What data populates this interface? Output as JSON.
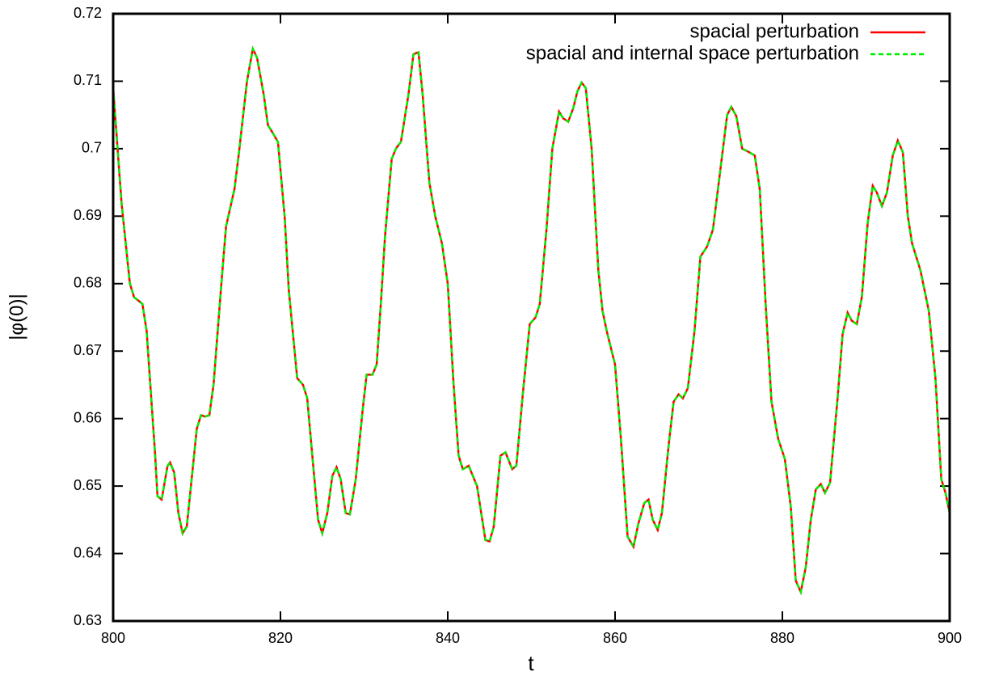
{
  "chart_data": {
    "type": "line",
    "xlabel": "t",
    "ylabel": "|φ(0)|",
    "xlim": [
      800,
      900
    ],
    "ylim": [
      0.63,
      0.72
    ],
    "xticks": [
      800,
      820,
      840,
      860,
      880,
      900
    ],
    "yticks": [
      0.63,
      0.64,
      0.65,
      0.66,
      0.67,
      0.68,
      0.69,
      0.7,
      0.71,
      0.72
    ],
    "legend": "top-right",
    "x": [
      800,
      801,
      802,
      802.5,
      803.5,
      804,
      805,
      805.3,
      805.8,
      806.5,
      806.8,
      807.3,
      807.8,
      808.3,
      808.8,
      809.3,
      810,
      810.5,
      811,
      811.5,
      812,
      813,
      813.5,
      814.5,
      815,
      816,
      816.7,
      817.2,
      818,
      818.5,
      819,
      819.7,
      820.5,
      821,
      822,
      822.7,
      823.2,
      823.7,
      824.5,
      825,
      825.6,
      826.2,
      826.7,
      827.2,
      827.8,
      828.3,
      829,
      829.8,
      830.3,
      831,
      831.5,
      832,
      832.5,
      833.3,
      833.8,
      834.4,
      835.3,
      835.9,
      836.5,
      837,
      837.8,
      838.5,
      839.3,
      840,
      840.7,
      841.3,
      841.8,
      842.5,
      843.5,
      844.5,
      845,
      845.5,
      846.3,
      846.9,
      847.7,
      848.2,
      849,
      849.8,
      850.5,
      851,
      851.8,
      852.5,
      853.3,
      853.8,
      854.4,
      855,
      855.5,
      856,
      856.5,
      857.2,
      858,
      858.5,
      859,
      860,
      860.7,
      861.5,
      862.2,
      862.8,
      863.5,
      864,
      864.5,
      865.1,
      865.6,
      866.4,
      867,
      867.6,
      868.1,
      868.7,
      869.5,
      870.2,
      871,
      871.7,
      872.5,
      873.4,
      873.9,
      874.5,
      875.2,
      876,
      876.7,
      877.3,
      878,
      878.7,
      879.5,
      880.3,
      881,
      881.6,
      882.2,
      882.8,
      883.4,
      884,
      884.6,
      885.1,
      885.7,
      886.6,
      887.2,
      887.8,
      888.3,
      888.9,
      889.5,
      890.2,
      890.8,
      891.3,
      891.9,
      892.5,
      893.2,
      893.8,
      894.4,
      895,
      895.5,
      896.5,
      897.5,
      898.3,
      899,
      899.5,
      900
    ],
    "series": [
      {
        "name": "spacial perturbation",
        "color": "#ff0000",
        "dash": false,
        "values": [
          0.709,
          0.692,
          0.68,
          0.678,
          0.677,
          0.673,
          0.655,
          0.6485,
          0.648,
          0.653,
          0.6535,
          0.652,
          0.646,
          0.643,
          0.644,
          0.65,
          0.6585,
          0.6605,
          0.6603,
          0.6605,
          0.665,
          0.681,
          0.6885,
          0.694,
          0.699,
          0.71,
          0.7148,
          0.7135,
          0.708,
          0.7035,
          0.7025,
          0.701,
          0.69,
          0.679,
          0.666,
          0.665,
          0.663,
          0.656,
          0.645,
          0.643,
          0.646,
          0.6515,
          0.6528,
          0.651,
          0.646,
          0.6458,
          0.651,
          0.661,
          0.6665,
          0.6665,
          0.668,
          0.677,
          0.687,
          0.6985,
          0.7,
          0.701,
          0.708,
          0.714,
          0.7143,
          0.708,
          0.695,
          0.69,
          0.686,
          0.68,
          0.665,
          0.6545,
          0.6525,
          0.653,
          0.65,
          0.642,
          0.6418,
          0.644,
          0.6545,
          0.655,
          0.6525,
          0.653,
          0.664,
          0.674,
          0.675,
          0.677,
          0.688,
          0.7,
          0.7055,
          0.7045,
          0.704,
          0.706,
          0.7085,
          0.7098,
          0.709,
          0.7,
          0.682,
          0.676,
          0.673,
          0.668,
          0.657,
          0.6425,
          0.641,
          0.6445,
          0.6475,
          0.648,
          0.645,
          0.6435,
          0.646,
          0.656,
          0.6625,
          0.6636,
          0.663,
          0.6645,
          0.673,
          0.684,
          0.6855,
          0.688,
          0.696,
          0.705,
          0.7062,
          0.7048,
          0.7,
          0.6995,
          0.699,
          0.694,
          0.677,
          0.6625,
          0.657,
          0.654,
          0.647,
          0.636,
          0.6343,
          0.638,
          0.645,
          0.6495,
          0.6503,
          0.649,
          0.6505,
          0.663,
          0.6725,
          0.6757,
          0.6745,
          0.674,
          0.678,
          0.689,
          0.6945,
          0.6935,
          0.6915,
          0.6935,
          0.699,
          0.7012,
          0.6995,
          0.69,
          0.686,
          0.682,
          0.676,
          0.666,
          0.651,
          0.649,
          0.646
        ]
      },
      {
        "name": "spacial and internal space perturbation",
        "color": "#00ee00",
        "dash": true,
        "values": [
          0.709,
          0.692,
          0.68,
          0.678,
          0.677,
          0.673,
          0.655,
          0.6485,
          0.648,
          0.653,
          0.6535,
          0.652,
          0.646,
          0.643,
          0.644,
          0.65,
          0.6585,
          0.6605,
          0.6603,
          0.6605,
          0.665,
          0.681,
          0.6885,
          0.694,
          0.699,
          0.71,
          0.7148,
          0.7135,
          0.708,
          0.7035,
          0.7025,
          0.701,
          0.69,
          0.679,
          0.666,
          0.665,
          0.663,
          0.656,
          0.645,
          0.643,
          0.646,
          0.6515,
          0.6528,
          0.651,
          0.646,
          0.6458,
          0.651,
          0.661,
          0.6665,
          0.6665,
          0.668,
          0.677,
          0.687,
          0.6985,
          0.7,
          0.701,
          0.708,
          0.714,
          0.7143,
          0.708,
          0.695,
          0.69,
          0.686,
          0.68,
          0.665,
          0.6545,
          0.6525,
          0.653,
          0.65,
          0.642,
          0.6418,
          0.644,
          0.6545,
          0.655,
          0.6525,
          0.653,
          0.664,
          0.674,
          0.675,
          0.677,
          0.688,
          0.7,
          0.7055,
          0.7045,
          0.704,
          0.706,
          0.7085,
          0.7098,
          0.709,
          0.7,
          0.682,
          0.676,
          0.673,
          0.668,
          0.657,
          0.6425,
          0.641,
          0.6445,
          0.6475,
          0.648,
          0.645,
          0.6435,
          0.646,
          0.656,
          0.6625,
          0.6636,
          0.663,
          0.6645,
          0.673,
          0.684,
          0.6855,
          0.688,
          0.696,
          0.705,
          0.7062,
          0.7048,
          0.7,
          0.6995,
          0.699,
          0.694,
          0.677,
          0.6625,
          0.657,
          0.654,
          0.647,
          0.636,
          0.6343,
          0.638,
          0.645,
          0.6495,
          0.6503,
          0.649,
          0.6505,
          0.663,
          0.6725,
          0.6757,
          0.6745,
          0.674,
          0.678,
          0.689,
          0.6945,
          0.6935,
          0.6915,
          0.6935,
          0.699,
          0.7012,
          0.6995,
          0.69,
          0.686,
          0.682,
          0.676,
          0.666,
          0.651,
          0.649,
          0.646
        ]
      }
    ]
  }
}
